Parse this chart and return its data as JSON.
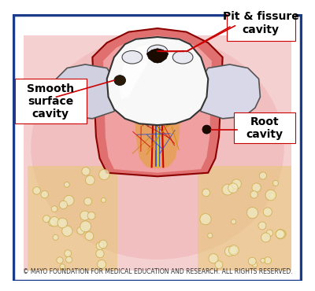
{
  "background_color": "#ffffff",
  "border_color": "#1a3a8a",
  "fig_width": 4.0,
  "fig_height": 3.7,
  "dpi": 100,
  "labels": {
    "pit_fissure": "Pit & fissure\ncavity",
    "smooth_surface": "Smooth\nsurface\ncavity",
    "root_cavity": "Root\ncavity"
  },
  "copyright": "© MAYO FOUNDATION FOR MEDICAL EDUCATION AND RESEARCH. ALL RIGHTS RESERVED.",
  "label_fontsize": 10,
  "copyright_fontsize": 5.5,
  "annotation_color": "#cc0000",
  "label_text_color": "#000000",
  "label_box_color": "#ffffff",
  "label_box_edge": "#cc0000"
}
